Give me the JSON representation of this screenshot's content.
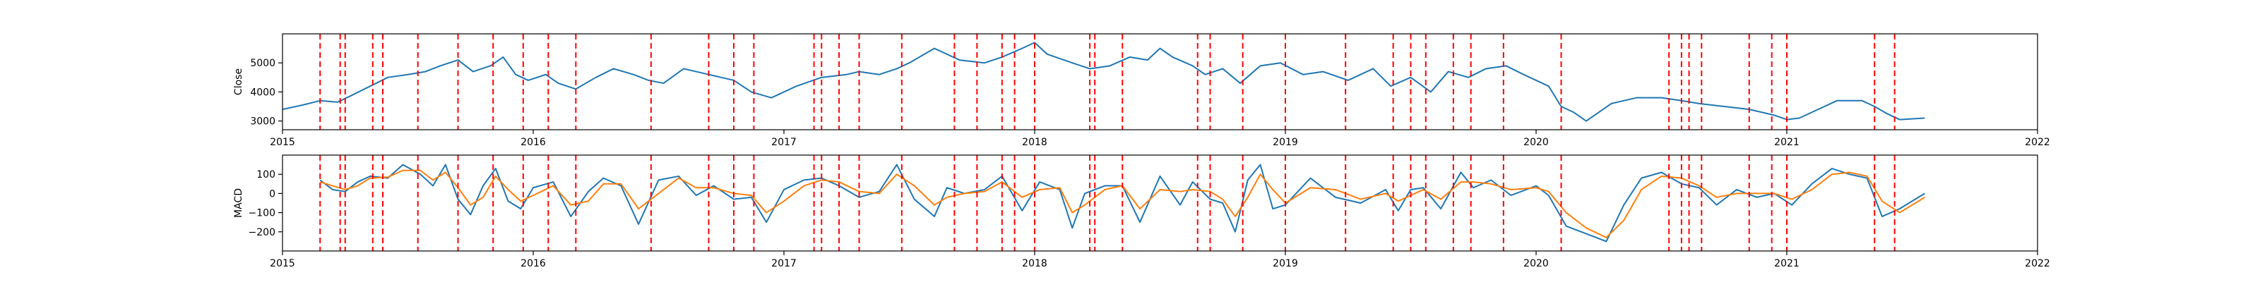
{
  "chart_data": [
    {
      "type": "line",
      "title": "",
      "ylabel": "Close",
      "xlabel": "",
      "xlim": [
        2015.0,
        2022.0
      ],
      "ylim": [
        2700,
        6000
      ],
      "x_ticks": [
        2015,
        2016,
        2017,
        2018,
        2019,
        2020,
        2021,
        2022
      ],
      "x_tick_labels": [
        "2015",
        "2016",
        "2017",
        "2018",
        "2019",
        "2020",
        "2021",
        "2022"
      ],
      "y_ticks": [
        3000,
        4000,
        5000
      ],
      "y_tick_labels": [
        "3000",
        "4000",
        "5000"
      ],
      "grid": false,
      "series": [
        {
          "color": "#1f77b4",
          "x": [
            2015.0,
            2015.08,
            2015.15,
            2015.22,
            2015.28,
            2015.35,
            2015.42,
            2015.5,
            2015.57,
            2015.63,
            2015.7,
            2015.76,
            2015.83,
            2015.88,
            2015.93,
            2015.98,
            2016.05,
            2016.1,
            2016.17,
            2016.25,
            2016.32,
            2016.4,
            2016.46,
            2016.52,
            2016.6,
            2016.7,
            2016.8,
            2016.87,
            2016.95,
            2017.05,
            2017.15,
            2017.25,
            2017.3,
            2017.38,
            2017.45,
            2017.5,
            2017.6,
            2017.7,
            2017.8,
            2017.87,
            2017.95,
            2018.0,
            2018.05,
            2018.15,
            2018.22,
            2018.3,
            2018.38,
            2018.45,
            2018.5,
            2018.55,
            2018.63,
            2018.68,
            2018.75,
            2018.82,
            2018.9,
            2018.98,
            2019.07,
            2019.15,
            2019.25,
            2019.35,
            2019.42,
            2019.5,
            2019.58,
            2019.65,
            2019.73,
            2019.8,
            2019.88,
            2019.95,
            2020.05,
            2020.1,
            2020.15,
            2020.2,
            2020.3,
            2020.4,
            2020.5,
            2020.58,
            2020.65,
            2020.75,
            2020.85,
            2020.95,
            2021.0,
            2021.05,
            2021.1,
            2021.2,
            2021.3,
            2021.35,
            2021.4,
            2021.45,
            2021.55
          ],
          "y": [
            3400,
            3550,
            3700,
            3650,
            3900,
            4200,
            4500,
            4600,
            4700,
            4900,
            5100,
            4700,
            4900,
            5200,
            4600,
            4400,
            4600,
            4300,
            4100,
            4500,
            4800,
            4600,
            4400,
            4300,
            4800,
            4600,
            4400,
            4000,
            3800,
            4200,
            4500,
            4600,
            4700,
            4600,
            4800,
            5000,
            5500,
            5100,
            5000,
            5200,
            5500,
            5700,
            5300,
            5000,
            4800,
            4900,
            5200,
            5100,
            5500,
            5200,
            4900,
            4600,
            4800,
            4300,
            4900,
            5000,
            4600,
            4700,
            4400,
            4800,
            4200,
            4500,
            4000,
            4700,
            4500,
            4800,
            4900,
            4600,
            4200,
            3500,
            3300,
            3000,
            3600,
            3800,
            3800,
            3700,
            3600,
            3500,
            3400,
            3200,
            3050,
            3100,
            3300,
            3700,
            3700,
            3500,
            3250,
            3050,
            3100
          ]
        }
      ],
      "vlines": [
        2015.15,
        2015.23,
        2015.25,
        2015.36,
        2015.4,
        2015.54,
        2015.7,
        2015.84,
        2015.96,
        2016.06,
        2016.17,
        2016.47,
        2016.7,
        2016.8,
        2016.88,
        2017.12,
        2017.15,
        2017.22,
        2017.3,
        2017.47,
        2017.68,
        2017.77,
        2017.87,
        2017.92,
        2018.0,
        2018.22,
        2018.24,
        2018.35,
        2018.65,
        2018.7,
        2018.83,
        2019.0,
        2019.24,
        2019.43,
        2019.5,
        2019.56,
        2019.67,
        2019.74,
        2019.87,
        2020.1,
        2020.53,
        2020.58,
        2020.61,
        2020.66,
        2020.85,
        2020.94,
        2021.0,
        2021.35,
        2021.43
      ],
      "vline_color": "#ff0000"
    },
    {
      "type": "line",
      "title": "",
      "ylabel": "MACD",
      "xlabel": "",
      "xlim": [
        2015.0,
        2022.0
      ],
      "ylim": [
        -300,
        200
      ],
      "x_ticks": [
        2015,
        2016,
        2017,
        2018,
        2019,
        2020,
        2021,
        2022
      ],
      "x_tick_labels": [
        "2015",
        "2016",
        "2017",
        "2018",
        "2019",
        "2020",
        "2021",
        "2022"
      ],
      "y_ticks": [
        -200,
        -100,
        0,
        100
      ],
      "y_tick_labels": [
        "−200",
        "−100",
        "0",
        "100"
      ],
      "grid": false,
      "series": [
        {
          "color": "#1f77b4",
          "x": [
            2015.15,
            2015.2,
            2015.25,
            2015.3,
            2015.35,
            2015.42,
            2015.48,
            2015.55,
            2015.6,
            2015.65,
            2015.7,
            2015.75,
            2015.8,
            2015.85,
            2015.9,
            2015.95,
            2016.0,
            2016.08,
            2016.15,
            2016.22,
            2016.28,
            2016.35,
            2016.42,
            2016.5,
            2016.58,
            2016.65,
            2016.72,
            2016.8,
            2016.87,
            2016.93,
            2017.0,
            2017.08,
            2017.15,
            2017.22,
            2017.3,
            2017.38,
            2017.45,
            2017.52,
            2017.6,
            2017.65,
            2017.72,
            2017.8,
            2017.87,
            2017.95,
            2018.02,
            2018.1,
            2018.15,
            2018.2,
            2018.28,
            2018.35,
            2018.42,
            2018.5,
            2018.58,
            2018.63,
            2018.7,
            2018.75,
            2018.8,
            2018.85,
            2018.9,
            2018.95,
            2019.0,
            2019.1,
            2019.2,
            2019.3,
            2019.4,
            2019.45,
            2019.5,
            2019.55,
            2019.62,
            2019.7,
            2019.75,
            2019.82,
            2019.9,
            2020.0,
            2020.05,
            2020.12,
            2020.2,
            2020.28,
            2020.35,
            2020.42,
            2020.5,
            2020.58,
            2020.65,
            2020.72,
            2020.8,
            2020.88,
            2020.95,
            2021.02,
            2021.1,
            2021.18,
            2021.25,
            2021.32,
            2021.38,
            2021.45,
            2021.55
          ],
          "y": [
            70,
            20,
            10,
            60,
            90,
            80,
            150,
            100,
            40,
            150,
            -30,
            -110,
            40,
            130,
            -40,
            -80,
            30,
            60,
            -120,
            10,
            80,
            40,
            -160,
            70,
            90,
            -10,
            40,
            -30,
            -20,
            -150,
            20,
            70,
            80,
            40,
            -20,
            10,
            150,
            -30,
            -120,
            30,
            0,
            20,
            90,
            -90,
            60,
            20,
            -180,
            0,
            40,
            40,
            -150,
            90,
            -60,
            60,
            -30,
            -50,
            -200,
            70,
            150,
            -80,
            -60,
            80,
            -20,
            -50,
            20,
            -90,
            20,
            30,
            -80,
            110,
            30,
            70,
            -10,
            40,
            -10,
            -170,
            -210,
            -250,
            -60,
            80,
            110,
            50,
            30,
            -60,
            20,
            -20,
            0,
            -60,
            50,
            130,
            100,
            80,
            -120,
            -80,
            0
          ]
        },
        {
          "color": "#ff7f0e",
          "x": [
            2015.15,
            2015.2,
            2015.25,
            2015.3,
            2015.35,
            2015.42,
            2015.48,
            2015.55,
            2015.6,
            2015.65,
            2015.7,
            2015.75,
            2015.8,
            2015.85,
            2015.9,
            2015.95,
            2016.0,
            2016.08,
            2016.15,
            2016.22,
            2016.28,
            2016.35,
            2016.42,
            2016.5,
            2016.58,
            2016.65,
            2016.72,
            2016.8,
            2016.87,
            2016.93,
            2017.0,
            2017.08,
            2017.15,
            2017.22,
            2017.3,
            2017.38,
            2017.45,
            2017.52,
            2017.6,
            2017.65,
            2017.72,
            2017.8,
            2017.87,
            2017.95,
            2018.02,
            2018.1,
            2018.15,
            2018.2,
            2018.28,
            2018.35,
            2018.42,
            2018.5,
            2018.58,
            2018.63,
            2018.7,
            2018.75,
            2018.8,
            2018.85,
            2018.9,
            2018.95,
            2019.0,
            2019.1,
            2019.2,
            2019.3,
            2019.4,
            2019.45,
            2019.5,
            2019.55,
            2019.62,
            2019.7,
            2019.75,
            2019.82,
            2019.9,
            2020.0,
            2020.05,
            2020.12,
            2020.2,
            2020.28,
            2020.35,
            2020.42,
            2020.5,
            2020.58,
            2020.65,
            2020.72,
            2020.8,
            2020.88,
            2020.95,
            2021.02,
            2021.1,
            2021.18,
            2021.25,
            2021.32,
            2021.38,
            2021.45,
            2021.55
          ],
          "y": [
            60,
            40,
            20,
            40,
            80,
            85,
            120,
            120,
            70,
            110,
            30,
            -60,
            -20,
            90,
            20,
            -40,
            -10,
            40,
            -60,
            -40,
            50,
            50,
            -80,
            0,
            80,
            30,
            30,
            0,
            -10,
            -100,
            -40,
            40,
            70,
            60,
            10,
            0,
            100,
            40,
            -60,
            -20,
            0,
            10,
            60,
            -20,
            20,
            30,
            -100,
            -60,
            20,
            40,
            -80,
            20,
            10,
            20,
            10,
            -30,
            -120,
            -20,
            100,
            20,
            -50,
            30,
            20,
            -30,
            0,
            -40,
            -10,
            20,
            -30,
            60,
            60,
            50,
            20,
            30,
            10,
            -100,
            -180,
            -230,
            -140,
            20,
            90,
            80,
            40,
            -20,
            0,
            0,
            0,
            -30,
            20,
            100,
            110,
            90,
            -40,
            -100,
            -20
          ]
        }
      ],
      "vlines": [
        2015.15,
        2015.23,
        2015.25,
        2015.36,
        2015.4,
        2015.54,
        2015.7,
        2015.84,
        2015.96,
        2016.06,
        2016.17,
        2016.47,
        2016.7,
        2016.8,
        2016.88,
        2017.12,
        2017.15,
        2017.22,
        2017.3,
        2017.47,
        2017.68,
        2017.77,
        2017.87,
        2017.92,
        2018.0,
        2018.22,
        2018.24,
        2018.35,
        2018.65,
        2018.7,
        2018.83,
        2019.0,
        2019.24,
        2019.43,
        2019.5,
        2019.56,
        2019.67,
        2019.74,
        2019.87,
        2020.1,
        2020.53,
        2020.58,
        2020.61,
        2020.66,
        2020.85,
        2020.94,
        2021.0,
        2021.35,
        2021.43
      ],
      "vline_color": "#ff0000"
    }
  ]
}
